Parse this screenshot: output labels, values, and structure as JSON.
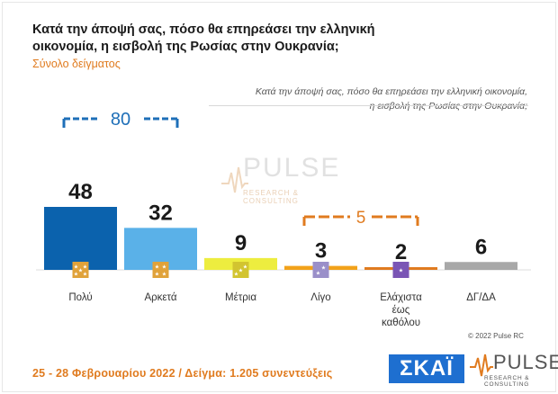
{
  "header": {
    "title": "Κατά την άποψή σας, πόσο θα επηρεάσει την ελληνική οικονομία, η εισβολή της Ρωσίας στην Ουκρανία;",
    "subtitle": "Σύνολο δείγματος",
    "question_line1": "Κατά την άποψή σας, πόσο θα επηρεάσει την ελληνική οικονομία,",
    "question_line2": "η εισβολή της Ρωσίας στην Ουκρανία;"
  },
  "chart_data": {
    "type": "bar",
    "categories": [
      "Πολύ",
      "Αρκετά",
      "Μέτρια",
      "Λίγο",
      "Ελάχιστα έως καθόλου",
      "ΔΓ/ΔΑ"
    ],
    "category_lines": [
      [
        "Πολύ"
      ],
      [
        "Αρκετά"
      ],
      [
        "Μέτρια"
      ],
      [
        "Λίγο"
      ],
      [
        "Ελάχιστα",
        "έως",
        "καθόλου"
      ],
      [
        "ΔΓ/ΔΑ"
      ]
    ],
    "values": [
      48,
      32,
      9,
      3,
      2,
      6
    ],
    "colors": [
      "#0b62ad",
      "#5ab1e8",
      "#eded3f",
      "#f2a21a",
      "#e07b1f",
      "#a8a8a8"
    ],
    "star_box_colors": [
      "#e0a23a",
      "#e0a23a",
      "#d2c430",
      "#9a8fc9",
      "#7a55b5",
      null
    ],
    "star_counts": [
      5,
      4,
      3,
      2,
      1,
      0
    ],
    "groups": [
      {
        "label": "80",
        "from": 0,
        "to": 1,
        "color": "#1e6fb8"
      },
      {
        "label": "5",
        "from": 3,
        "to": 4,
        "color": "#e07b1f"
      }
    ],
    "ylim": [
      0,
      48
    ]
  },
  "watermark": {
    "brand": "PULSE",
    "tagline": "RESEARCH & CONSULTING"
  },
  "footer": {
    "fieldwork": "25 - 28 Φεβρουαρίου 2022 / Δείγμα: 1.205 συνεντεύξεις",
    "copyright": "© 2022 Pulse RC",
    "logo_skai": "ΣΚΑΪ",
    "logo_pulse": "PULSE",
    "logo_pulse_sub": "RESEARCH & CONSULTING"
  }
}
